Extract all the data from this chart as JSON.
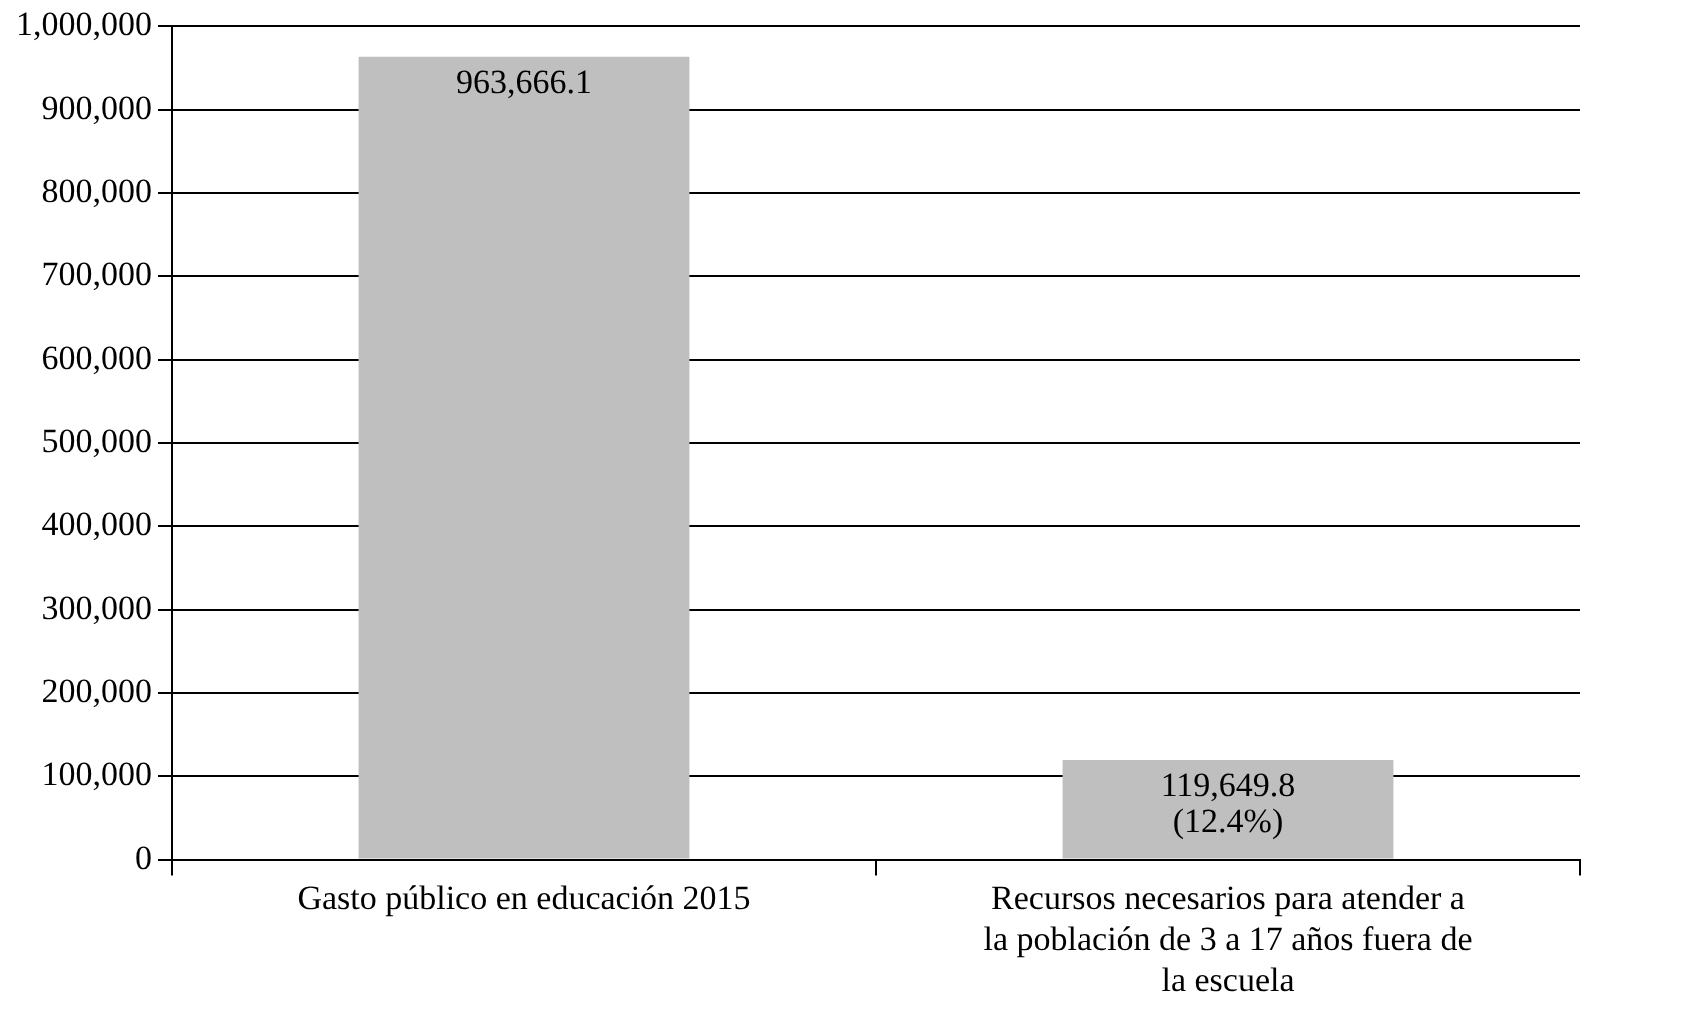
{
  "chart_data": {
    "type": "bar",
    "categories": [
      "Gasto público en educación 2015",
      "Recursos necesarios para atender a la población de 3 a 17 años fuera de la escuela"
    ],
    "values": [
      963666.1,
      119649.8
    ],
    "value_labels": [
      "963,666.1",
      "119,649.8 (12.4%)"
    ],
    "color": "#bfbfbf",
    "ylim": [
      0,
      1000000
    ],
    "yticks": [
      {
        "value": 0,
        "label": "0"
      },
      {
        "value": 100000,
        "label": "100,000"
      },
      {
        "value": 200000,
        "label": "200,000"
      },
      {
        "value": 300000,
        "label": "300,000"
      },
      {
        "value": 400000,
        "label": "400,000"
      },
      {
        "value": 500000,
        "label": "500,000"
      },
      {
        "value": 600000,
        "label": "600,000"
      },
      {
        "value": 700000,
        "label": "700,000"
      },
      {
        "value": 800000,
        "label": "800,000"
      },
      {
        "value": 900000,
        "label": "900,000"
      },
      {
        "value": 1000000,
        "label": "1,000,000"
      }
    ],
    "grid": "y",
    "legend": false
  }
}
